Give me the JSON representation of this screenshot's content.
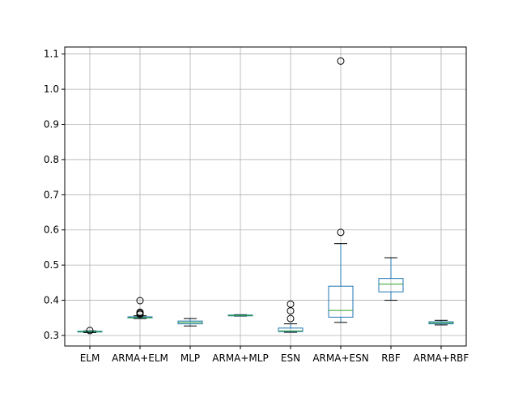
{
  "chart_data": {
    "type": "box",
    "title": "",
    "xlabel": "",
    "ylabel": "",
    "grid": true,
    "ylim": [
      0.27,
      1.12
    ],
    "yticks": [
      0.3,
      0.4,
      0.5,
      0.6,
      0.7,
      0.8,
      0.9,
      1.0,
      1.1
    ],
    "ytick_labels": [
      "0.3",
      "0.4",
      "0.5",
      "0.6",
      "0.7",
      "0.8",
      "0.9",
      "1.0",
      "1.1"
    ],
    "categories": [
      "ELM",
      "ARMA+ELM",
      "MLP",
      "ARMA+MLP",
      "ESN",
      "ARMA+ESN",
      "RBF",
      "ARMA+RBF"
    ],
    "boxes": [
      {
        "label": "ELM",
        "whisker_low": 0.308,
        "q1": 0.31,
        "median": 0.311,
        "q3": 0.312,
        "whisker_high": 0.313,
        "outliers": [
          0.314
        ]
      },
      {
        "label": "ARMA+ELM",
        "whisker_low": 0.348,
        "q1": 0.35,
        "median": 0.351,
        "q3": 0.353,
        "whisker_high": 0.356,
        "outliers": [
          0.36,
          0.363,
          0.366,
          0.399
        ]
      },
      {
        "label": "MLP",
        "whisker_low": 0.327,
        "q1": 0.333,
        "median": 0.337,
        "q3": 0.341,
        "whisker_high": 0.348,
        "outliers": []
      },
      {
        "label": "ARMA+MLP",
        "whisker_low": 0.355,
        "q1": 0.356,
        "median": 0.357,
        "q3": 0.358,
        "whisker_high": 0.359,
        "outliers": []
      },
      {
        "label": "ESN",
        "whisker_low": 0.309,
        "q1": 0.311,
        "median": 0.313,
        "q3": 0.321,
        "whisker_high": 0.333,
        "outliers": [
          0.348,
          0.37,
          0.389
        ]
      },
      {
        "label": "ARMA+ESN",
        "whisker_low": 0.337,
        "q1": 0.352,
        "median": 0.371,
        "q3": 0.44,
        "whisker_high": 0.561,
        "outliers": [
          0.593,
          1.08
        ]
      },
      {
        "label": "RBF",
        "whisker_low": 0.4,
        "q1": 0.424,
        "median": 0.446,
        "q3": 0.462,
        "whisker_high": 0.521,
        "outliers": []
      },
      {
        "label": "ARMA+RBF",
        "whisker_low": 0.33,
        "q1": 0.333,
        "median": 0.336,
        "q3": 0.339,
        "whisker_high": 0.343,
        "outliers": []
      }
    ]
  },
  "colors": {
    "box": "#1f77b4",
    "median": "#2ca02c",
    "whisker": "#000000",
    "grid": "#b0b0b0",
    "axes": "#000000"
  }
}
